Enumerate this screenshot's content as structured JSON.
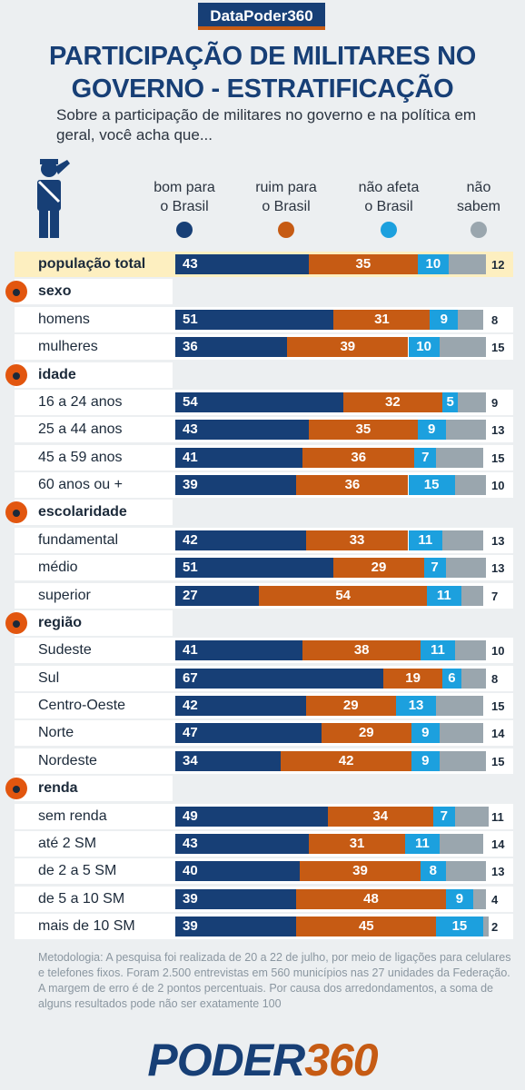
{
  "badge": "DataPoder360",
  "chart_data": {
    "type": "bar",
    "stacked": true,
    "title": "PARTICIPAÇÃO DE MILITARES NO GOVERNO - ESTRATIFICAÇÃO",
    "subtitle": "Sobre a participação de militares no governo e na política em geral, você acha que...",
    "xlim": [
      0,
      100
    ],
    "series": [
      {
        "name": "bom para o Brasil",
        "color": "#173f76"
      },
      {
        "name": "ruim para o Brasil",
        "color": "#c65b14"
      },
      {
        "name": "não afeta o Brasil",
        "color": "#1ca0de"
      },
      {
        "name": "não sabem",
        "color": "#9aa6ae"
      }
    ],
    "total": {
      "label": "população total",
      "values": [
        43,
        35,
        10,
        12
      ]
    },
    "groups": [
      {
        "name": "sexo",
        "rows": [
          {
            "label": "homens",
            "values": [
              51,
              31,
              9,
              8
            ]
          },
          {
            "label": "mulheres",
            "values": [
              36,
              39,
              10,
              15
            ]
          }
        ]
      },
      {
        "name": "idade",
        "rows": [
          {
            "label": "16 a 24 anos",
            "values": [
              54,
              32,
              5,
              9
            ]
          },
          {
            "label": "25 a 44 anos",
            "values": [
              43,
              35,
              9,
              13
            ]
          },
          {
            "label": "45 a 59 anos",
            "values": [
              41,
              36,
              7,
              15
            ]
          },
          {
            "label": "60 anos ou +",
            "values": [
              39,
              36,
              15,
              10
            ]
          }
        ]
      },
      {
        "name": "escolaridade",
        "rows": [
          {
            "label": "fundamental",
            "values": [
              42,
              33,
              11,
              13
            ]
          },
          {
            "label": "médio",
            "values": [
              51,
              29,
              7,
              13
            ]
          },
          {
            "label": "superior",
            "values": [
              27,
              54,
              11,
              7
            ]
          }
        ]
      },
      {
        "name": "região",
        "rows": [
          {
            "label": "Sudeste",
            "values": [
              41,
              38,
              11,
              10
            ]
          },
          {
            "label": "Sul",
            "values": [
              67,
              19,
              6,
              8
            ]
          },
          {
            "label": "Centro-Oeste",
            "values": [
              42,
              29,
              13,
              15
            ]
          },
          {
            "label": "Norte",
            "values": [
              47,
              29,
              9,
              14
            ]
          },
          {
            "label": "Nordeste",
            "values": [
              34,
              42,
              9,
              15
            ]
          }
        ]
      },
      {
        "name": "renda",
        "rows": [
          {
            "label": "sem renda",
            "values": [
              49,
              34,
              7,
              11
            ]
          },
          {
            "label": "até 2 SM",
            "values": [
              43,
              31,
              11,
              14
            ]
          },
          {
            "label": "de 2 a 5 SM",
            "values": [
              40,
              39,
              8,
              13
            ]
          },
          {
            "label": "de 5 a 10 SM",
            "values": [
              39,
              48,
              9,
              4
            ]
          },
          {
            "label": "mais de 10 SM",
            "values": [
              39,
              45,
              15,
              2
            ]
          }
        ]
      }
    ]
  },
  "methodology": "Metodologia: A pesquisa foi realizada de 20 a 22 de julho, por meio de ligações para celulares e telefones fixos. Foram 2.500 entrevistas em 560 municípios nas 27 unidades da Federação. A margem de erro é de 2 pontos percentuais. Por causa dos arredondamentos, a soma de alguns resultados pode não ser exatamente 100",
  "logo": {
    "left": "PODER",
    "right": "360"
  }
}
